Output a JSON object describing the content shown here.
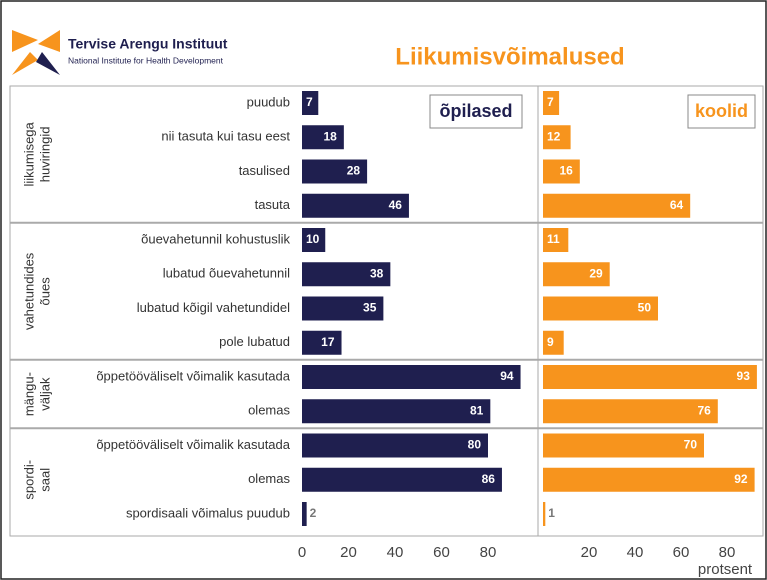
{
  "header": {
    "org": "Tervise Arengu Instituut",
    "org_en": "National Institute for Health Development"
  },
  "chart_data": {
    "type": "bar",
    "orientation": "horizontal",
    "title": "Liikumisvõimalused",
    "xlabel": "protsent",
    "xlim": [
      0,
      100
    ],
    "groups": [
      {
        "label": [
          "liikumisega",
          "huviringid"
        ],
        "categories": [
          "puudub",
          "nii tasuta kui tasu eest",
          "tasulised",
          "tasuta"
        ]
      },
      {
        "label": [
          "vahetundides",
          "õues"
        ],
        "categories": [
          "õuevahetunnil kohustuslik",
          "lubatud õuevahetunnil",
          "lubatud kõigil vahetundidel",
          "pole lubatud"
        ]
      },
      {
        "label": [
          "mängu-",
          "väljak"
        ],
        "categories": [
          "õppetööväliselt võimalik kasutada",
          "olemas"
        ]
      },
      {
        "label": [
          "spordi-",
          "saal"
        ],
        "categories": [
          "õppetööväliselt võimalik kasutada",
          "olemas",
          "spordisaali võimalus puudub"
        ]
      }
    ],
    "series": [
      {
        "name": "õpilased",
        "color": "#1f1f4f",
        "xticks": [
          0,
          20,
          40,
          60,
          80
        ],
        "values": [
          7,
          18,
          28,
          46,
          10,
          38,
          35,
          17,
          94,
          81,
          80,
          86,
          2
        ]
      },
      {
        "name": "koolid",
        "color": "#f7941d",
        "xticks": [
          20,
          40,
          60,
          80
        ],
        "values": [
          7,
          12,
          16,
          64,
          11,
          29,
          50,
          9,
          93,
          76,
          70,
          92,
          1
        ]
      }
    ]
  }
}
